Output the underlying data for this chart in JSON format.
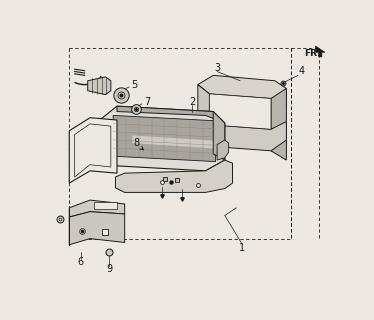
{
  "bg_color": "#ede9e2",
  "line_color": "#1a1a1a",
  "figsize": [
    3.74,
    3.2
  ],
  "dpi": 100,
  "fr_label": "FR.",
  "xlim": [
    0,
    374
  ],
  "ylim": [
    0,
    320
  ]
}
